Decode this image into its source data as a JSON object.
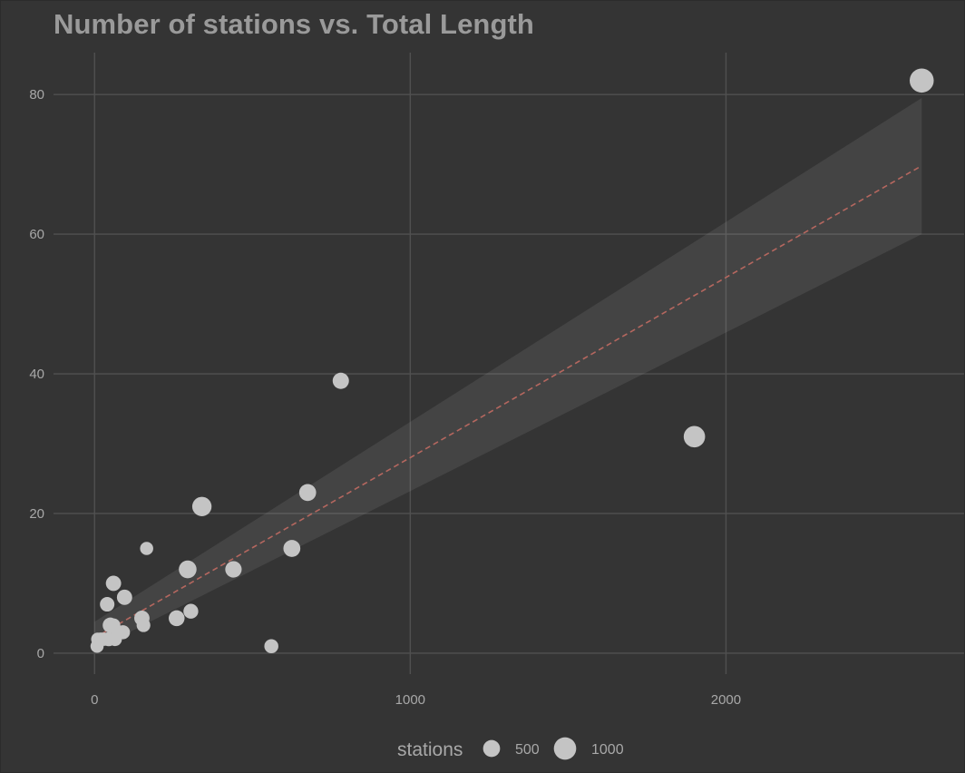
{
  "chart_data": {
    "type": "scatter",
    "title": "Number of stations vs. Total Length",
    "xlabel": "",
    "ylabel": "",
    "xlim": [
      -130,
      2760
    ],
    "ylim": [
      -3,
      86
    ],
    "x_ticks": [
      0,
      1000,
      2000
    ],
    "y_ticks": [
      0,
      20,
      40,
      60,
      80
    ],
    "grid": true,
    "background_color": "#343434",
    "grid_color": "#505050",
    "point_color": "#c4c4c4",
    "trend_color": "#b5675f",
    "band_color": "#4a4a4a",
    "size_legend": {
      "title": "stations",
      "position": "bottom",
      "entries": [
        {
          "label": "500",
          "value": 500
        },
        {
          "label": "1000",
          "value": 1000
        }
      ]
    },
    "points": [
      {
        "x": 2620,
        "y": 82,
        "size": 1200
      },
      {
        "x": 1900,
        "y": 31,
        "size": 900
      },
      {
        "x": 780,
        "y": 39,
        "size": 450
      },
      {
        "x": 675,
        "y": 23,
        "size": 500
      },
      {
        "x": 625,
        "y": 15,
        "size": 500
      },
      {
        "x": 560,
        "y": 1,
        "size": 300
      },
      {
        "x": 440,
        "y": 12,
        "size": 460
      },
      {
        "x": 340,
        "y": 21,
        "size": 700
      },
      {
        "x": 305,
        "y": 6,
        "size": 350
      },
      {
        "x": 295,
        "y": 12,
        "size": 560
      },
      {
        "x": 260,
        "y": 5,
        "size": 420
      },
      {
        "x": 165,
        "y": 15,
        "size": 250
      },
      {
        "x": 155,
        "y": 4,
        "size": 280
      },
      {
        "x": 150,
        "y": 5,
        "size": 380
      },
      {
        "x": 95,
        "y": 8,
        "size": 380
      },
      {
        "x": 90,
        "y": 3,
        "size": 300
      },
      {
        "x": 75,
        "y": 3,
        "size": 300
      },
      {
        "x": 65,
        "y": 2,
        "size": 280
      },
      {
        "x": 60,
        "y": 10,
        "size": 380
      },
      {
        "x": 60,
        "y": 4,
        "size": 280
      },
      {
        "x": 50,
        "y": 4,
        "size": 380
      },
      {
        "x": 45,
        "y": 2,
        "size": 300
      },
      {
        "x": 40,
        "y": 7,
        "size": 330
      },
      {
        "x": 30,
        "y": 2,
        "size": 260
      },
      {
        "x": 20,
        "y": 2,
        "size": 260
      },
      {
        "x": 10,
        "y": 2,
        "size": 250
      },
      {
        "x": 8,
        "y": 1,
        "size": 250
      }
    ],
    "trend_line": {
      "style": "dashed",
      "x": [
        0,
        2620
      ],
      "y": [
        2.2,
        69.8
      ]
    },
    "confidence_band": {
      "x": [
        0,
        2620
      ],
      "upper": [
        4.5,
        79.5
      ],
      "lower": [
        0.5,
        60.0
      ]
    }
  }
}
